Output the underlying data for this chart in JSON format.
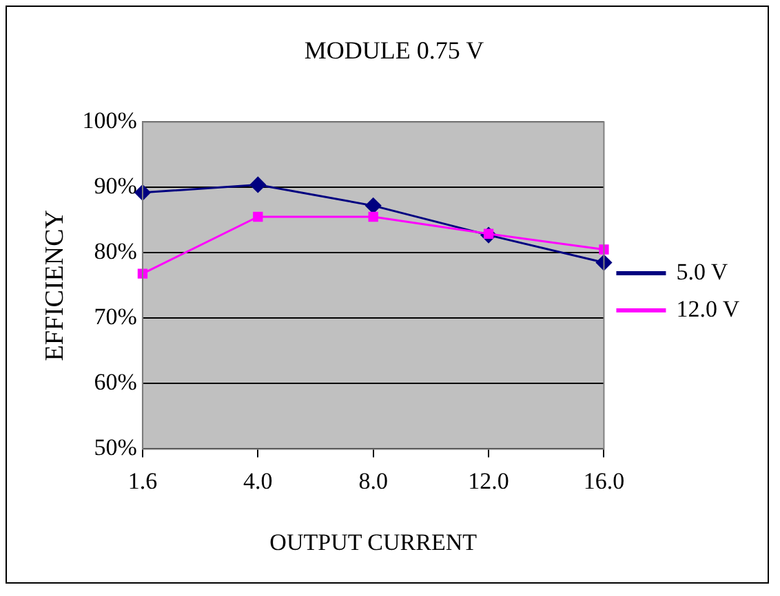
{
  "chart_data": {
    "type": "line",
    "title": "MODULE 0.75 V",
    "xlabel": "OUTPUT CURRENT",
    "ylabel": "EFFICIENCY",
    "categories": [
      "1.6",
      "4.0",
      "8.0",
      "12.0",
      "16.0"
    ],
    "series": [
      {
        "name": "5.0 V",
        "color": "#000080",
        "marker": "diamond",
        "values": [
          89.2,
          90.4,
          87.2,
          82.7,
          78.5
        ]
      },
      {
        "name": "12.0 V",
        "color": "#ff00ff",
        "marker": "square",
        "values": [
          76.8,
          85.5,
          85.5,
          82.9,
          80.5
        ]
      }
    ],
    "ylim": [
      50,
      100
    ],
    "yticks": [
      {
        "value": 50,
        "label": "50%"
      },
      {
        "value": 60,
        "label": "60%"
      },
      {
        "value": 70,
        "label": "70%"
      },
      {
        "value": 80,
        "label": "80%"
      },
      {
        "value": 90,
        "label": "90%"
      },
      {
        "value": 100,
        "label": "100%"
      }
    ],
    "grid": "y",
    "legend": "right",
    "line_style": "solid"
  }
}
